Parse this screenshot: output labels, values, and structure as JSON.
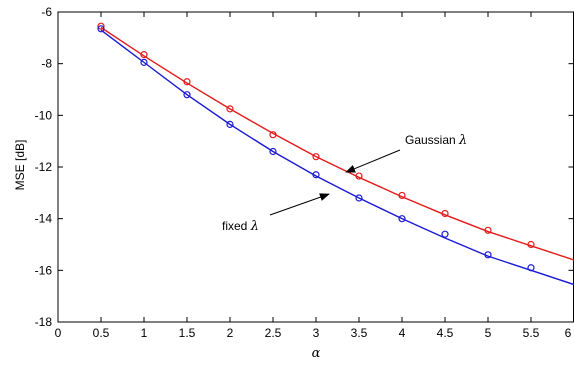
{
  "chart_data": {
    "type": "line",
    "xlabel": "α",
    "ylabel": "MSE  [dB]",
    "xlim": [
      0,
      6
    ],
    "ylim": [
      -18,
      -6
    ],
    "xticks": [
      0,
      0.5,
      1,
      1.5,
      2,
      2.5,
      3,
      3.5,
      4,
      4.5,
      5,
      5.5,
      6
    ],
    "xtick_labels": [
      "0",
      "0.5",
      "1",
      "1.5",
      "2",
      "2.5",
      "3",
      "3.5",
      "4",
      "4.5",
      "5",
      "5.5",
      "6"
    ],
    "yticks": [
      -18,
      -16,
      -14,
      -12,
      -10,
      -8,
      -6
    ],
    "ytick_labels": [
      "-18",
      "-16",
      "-14",
      "-12",
      "-10",
      "-8",
      "-6"
    ],
    "grid": false,
    "series": [
      {
        "label_text": "Gaussian",
        "label_symbol": "λ",
        "color": "#e41a1a",
        "line": {
          "x": [
            0.5,
            1,
            1.5,
            2,
            2.5,
            3,
            3.5,
            4,
            4.5,
            5,
            5.5,
            6
          ],
          "y": [
            -6.6,
            -7.7,
            -8.75,
            -9.75,
            -10.7,
            -11.6,
            -12.4,
            -13.15,
            -13.85,
            -14.5,
            -15.05,
            -15.6
          ]
        },
        "markers": {
          "x": [
            0.5,
            1,
            1.5,
            2,
            2.5,
            3,
            3.5,
            4,
            4.5,
            5,
            5.5
          ],
          "y": [
            -6.55,
            -7.65,
            -8.7,
            -9.75,
            -10.75,
            -11.6,
            -12.35,
            -13.1,
            -13.8,
            -14.45,
            -15.0
          ]
        }
      },
      {
        "label_text": "fixed",
        "label_symbol": "λ",
        "color": "#1a1ad6",
        "line": {
          "x": [
            0.5,
            1,
            1.5,
            2,
            2.5,
            3,
            3.5,
            4,
            4.5,
            5,
            5.5,
            6
          ],
          "y": [
            -6.7,
            -7.95,
            -9.2,
            -10.35,
            -11.4,
            -12.35,
            -13.2,
            -14.0,
            -14.75,
            -15.45,
            -16.0,
            -16.55
          ]
        },
        "markers": {
          "x": [
            0.5,
            1,
            1.5,
            2,
            2.5,
            3,
            3.5,
            4,
            4.5,
            5,
            5.5
          ],
          "y": [
            -6.65,
            -7.95,
            -9.2,
            -10.35,
            -11.4,
            -12.3,
            -13.2,
            -14.0,
            -14.6,
            -15.4,
            -15.9
          ]
        }
      }
    ],
    "annotations": [
      {
        "text": "Gaussian",
        "symbol": "λ",
        "arrow_to": [
          3.35,
          -12.2
        ]
      },
      {
        "text": "fixed",
        "symbol": "λ",
        "arrow_to": [
          3.15,
          -13.05
        ]
      }
    ]
  }
}
